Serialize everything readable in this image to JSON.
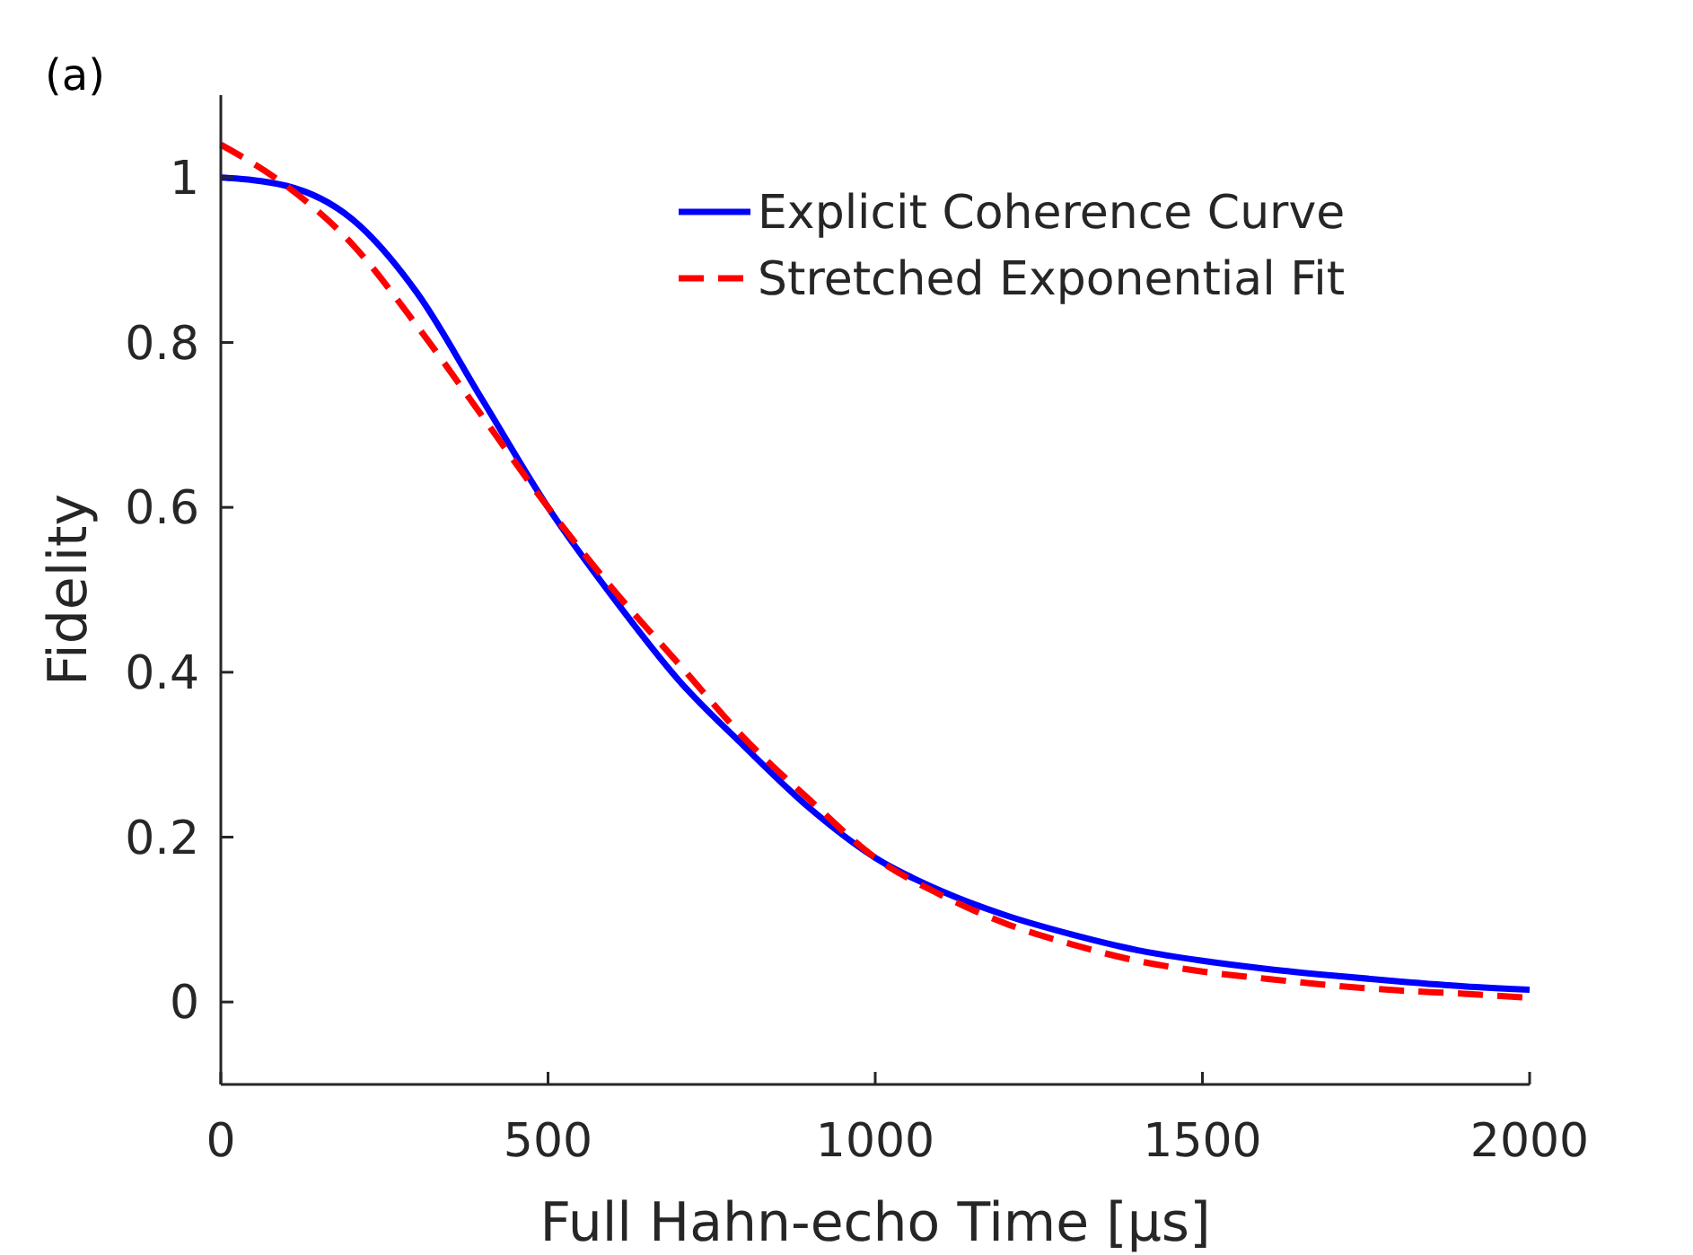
{
  "chart_data": {
    "type": "line",
    "xlabel": "Full Hahn-echo Time [μs]",
    "ylabel": "Fidelity",
    "annotations": [
      "(a)"
    ],
    "x": [
      0,
      100,
      200,
      300,
      400,
      500,
      600,
      700,
      800,
      900,
      1000,
      1100,
      1200,
      1300,
      1400,
      1500,
      1600,
      1700,
      1800,
      1900,
      2000
    ],
    "series": [
      {
        "name": "Explicit Coherence Curve",
        "color": "#0000ff",
        "line_style": "solid",
        "values": [
          1.0,
          0.99,
          0.95,
          0.86,
          0.73,
          0.6,
          0.49,
          0.39,
          0.31,
          0.235,
          0.175,
          0.135,
          0.105,
          0.082,
          0.063,
          0.05,
          0.04,
          0.032,
          0.025,
          0.019,
          0.015
        ]
      },
      {
        "name": "Stretched Exponential Fit",
        "color": "#ff0000",
        "line_style": "dashed",
        "values": [
          1.04,
          0.99,
          0.92,
          0.82,
          0.71,
          0.6,
          0.5,
          0.41,
          0.32,
          0.245,
          0.175,
          0.13,
          0.095,
          0.07,
          0.05,
          0.037,
          0.028,
          0.02,
          0.014,
          0.01,
          0.005
        ]
      }
    ],
    "xlim": [
      0,
      2000
    ],
    "xticks": [
      0,
      500,
      1000,
      1500,
      2000
    ],
    "ylim": [
      -0.1,
      1.1
    ],
    "yticks": [
      0,
      0.2,
      0.4,
      0.6,
      0.8,
      1
    ],
    "grid": false,
    "legend": "top right"
  }
}
